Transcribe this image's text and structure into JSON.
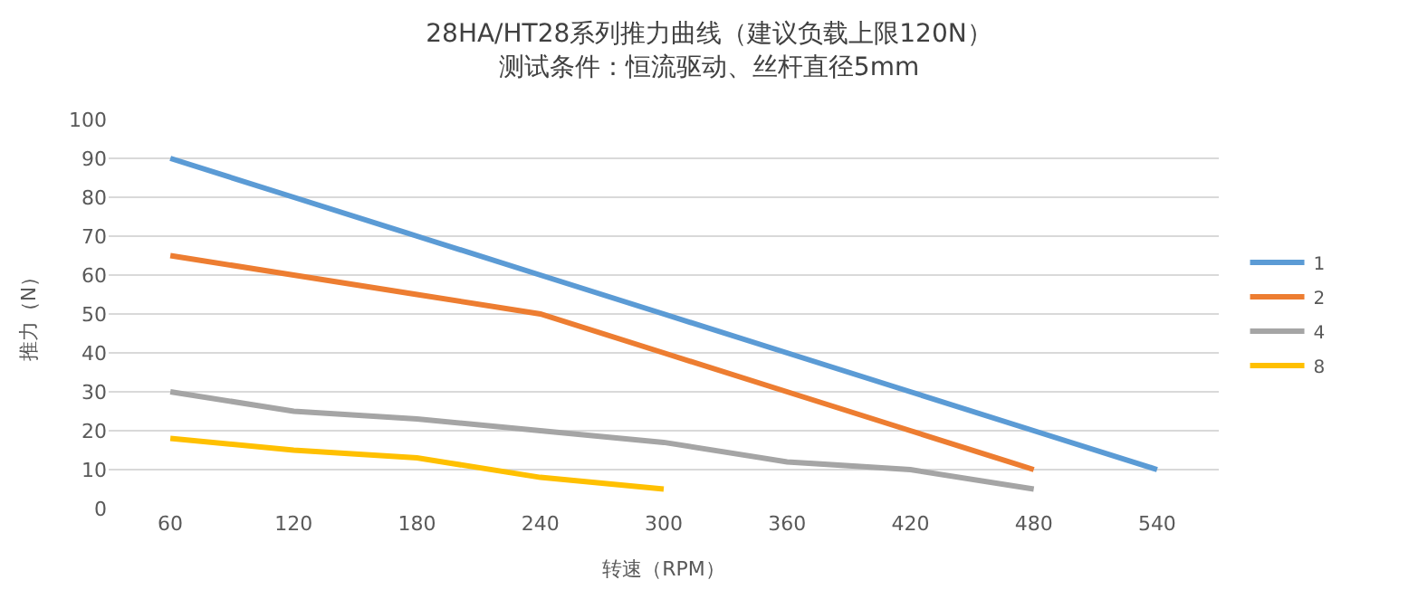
{
  "chart_data": {
    "type": "line",
    "title": "28HA/HT28系列推力曲线（建议负载上限120N）",
    "subtitle": "测试条件：恒流驱动、丝杆直径5mm",
    "xlabel": "转速（RPM）",
    "ylabel": "推力（N）",
    "categories": [
      "60",
      "120",
      "180",
      "240",
      "300",
      "360",
      "420",
      "480",
      "540"
    ],
    "series": [
      {
        "name": "1",
        "color": "#5b9bd5",
        "values": [
          90,
          80,
          70,
          60,
          50,
          40,
          30,
          20,
          10
        ]
      },
      {
        "name": "2",
        "color": "#ed7d31",
        "values": [
          65,
          60,
          55,
          50,
          40,
          30,
          20,
          10,
          null
        ]
      },
      {
        "name": "4",
        "color": "#a5a5a5",
        "values": [
          30,
          25,
          23,
          20,
          17,
          12,
          10,
          5,
          null
        ]
      },
      {
        "name": "8",
        "color": "#ffc000",
        "values": [
          18,
          15,
          13,
          8,
          5,
          null,
          null,
          null,
          null
        ]
      }
    ],
    "ylim": [
      0,
      100
    ],
    "yticks": [
      0,
      10,
      20,
      30,
      40,
      50,
      60,
      70,
      80,
      90,
      100
    ],
    "grid": "y",
    "legend": "right",
    "marker": "none",
    "line_style": "solid"
  }
}
